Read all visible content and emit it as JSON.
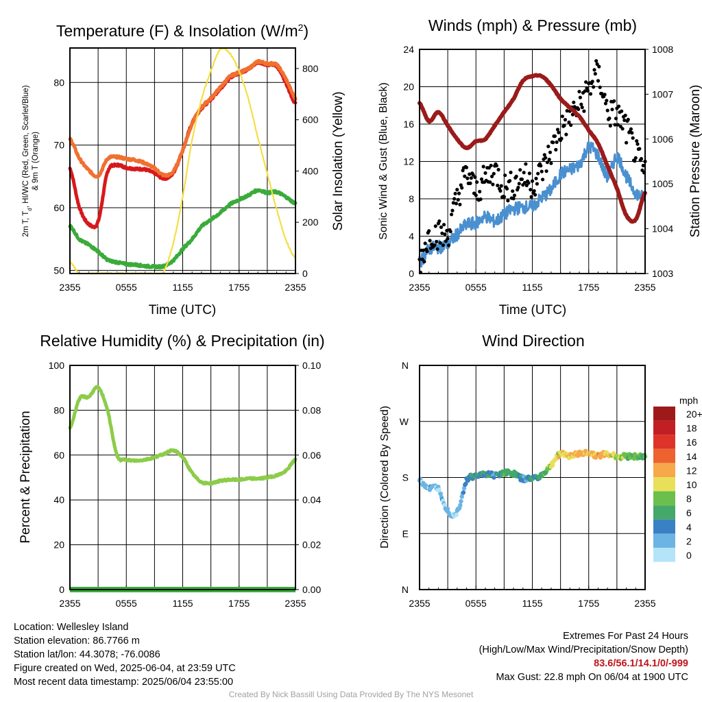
{
  "chart_data": [
    {
      "type": "line",
      "title": "Temperature (F) & Insolation (W/m²)",
      "xlabel": "Time (UTC)",
      "ylabel": "2m T, Td, HI/WC (Red, Green, Scarlet/Blue) & 9m T (Orange)",
      "ylabel_line1": "2m T, T",
      "ylabel_sub": "d",
      "ylabel_line1_tail": ", HI/WC (Red, Green, Scarlet/Blue)",
      "ylabel_line2": "& 9m T (Orange)",
      "y2label": "Solar Insolation (Yellow)",
      "x_ticks": [
        "2355",
        "0555",
        "1155",
        "1755",
        "2355"
      ],
      "ylim": [
        49.5,
        85.5
      ],
      "y_ticks": [
        50,
        60,
        70,
        80
      ],
      "y2lim": [
        0,
        880
      ],
      "y2_ticks": [
        0,
        200,
        400,
        600,
        800
      ],
      "x": [
        0,
        1,
        2,
        3,
        4,
        5,
        6,
        7,
        8,
        9,
        10,
        11,
        12,
        13,
        14,
        15,
        16,
        17,
        18,
        19,
        20,
        21,
        22,
        23,
        24
      ],
      "series": [
        {
          "color": "#d7191c",
          "values": [
            66.3,
            60.1,
            57.4,
            57.8,
            65.7,
            66.8,
            66.4,
            66.2,
            66.1,
            65.5,
            64.7,
            65.6,
            69.2,
            73.5,
            75.8,
            77.3,
            79.0,
            80.7,
            81.5,
            82.1,
            83.2,
            82.8,
            82.6,
            79.9,
            76.6
          ]
        },
        {
          "color": "#f07030",
          "values": [
            71.0,
            67.9,
            66.0,
            65.1,
            67.8,
            68.1,
            67.8,
            67.6,
            67.1,
            66.3,
            65.2,
            65.8,
            69.2,
            73.4,
            76.0,
            77.5,
            79.2,
            80.9,
            81.6,
            82.2,
            83.3,
            83.0,
            82.8,
            80.5,
            77.5
          ]
        },
        {
          "color": "#3aab3a",
          "values": [
            57.1,
            55.0,
            54.1,
            53.0,
            51.7,
            51.3,
            51.0,
            50.9,
            50.7,
            50.6,
            50.7,
            51.6,
            53.4,
            55.0,
            57.0,
            58.1,
            59.2,
            60.5,
            61.3,
            62.0,
            62.8,
            62.4,
            62.5,
            61.7,
            60.7
          ]
        },
        {
          "color": "#f5de44",
          "axis": "y2",
          "values": [
            45,
            0,
            0,
            0,
            0,
            0,
            0,
            0,
            0,
            0,
            10,
            120,
            300,
            520,
            680,
            790,
            875,
            860,
            790,
            680,
            530,
            390,
            250,
            130,
            60
          ]
        }
      ]
    },
    {
      "type": "line",
      "title": "Winds (mph) & Pressure (mb)",
      "xlabel": "Time (UTC)",
      "ylabel": "Sonic Wind & Gust (Blue, Black)",
      "y2label": "Station Pressure (Maroon)",
      "x_ticks": [
        "2355",
        "0555",
        "1155",
        "1755",
        "2355"
      ],
      "ylim": [
        0,
        24
      ],
      "y_ticks": [
        0,
        4,
        8,
        12,
        16,
        20,
        24
      ],
      "y2lim": [
        1003,
        1008
      ],
      "y2_ticks": [
        1003,
        1004,
        1005,
        1006,
        1007,
        1008
      ],
      "x": [
        0,
        1,
        2,
        3,
        4,
        5,
        6,
        7,
        8,
        9,
        10,
        11,
        12,
        13,
        14,
        15,
        16,
        17,
        18,
        19,
        20,
        21,
        22,
        23,
        24
      ],
      "series": [
        {
          "color": "#4a90d0",
          "values": [
            1.2,
            2.6,
            2.8,
            3.2,
            4.2,
            5.2,
            5.4,
            6.1,
            5.6,
            6.3,
            6.9,
            7.1,
            7.2,
            8.1,
            9.0,
            10.6,
            11.1,
            11.7,
            13.5,
            12.6,
            10.4,
            12.5,
            10.4,
            8.7,
            8.1
          ]
        },
        {
          "color": "#000000",
          "marker": "dot",
          "values": [
            1.3,
            4.0,
            4.2,
            4.3,
            8.0,
            10.5,
            9.0,
            10.1,
            11.0,
            9.3,
            9.5,
            10.4,
            9.7,
            11.0,
            13.1,
            15.3,
            16.8,
            18.0,
            19.8,
            21.2,
            17.5,
            17.0,
            15.4,
            12.9,
            10.5
          ]
        },
        {
          "color": "#9b1b1b",
          "axis": "y2",
          "values": [
            1006.8,
            1006.4,
            1006.6,
            1006.3,
            1006.0,
            1005.8,
            1005.95,
            1006.0,
            1006.3,
            1006.6,
            1006.9,
            1007.3,
            1007.4,
            1007.4,
            1007.2,
            1006.9,
            1006.7,
            1006.5,
            1006.2,
            1005.9,
            1005.4,
            1004.9,
            1004.3,
            1004.2,
            1004.8
          ]
        }
      ]
    },
    {
      "type": "line",
      "title": "Relative Humidity (%) & Precipitation (in)",
      "ylabel": "Percent & Precipitation",
      "x_ticks": [
        "2355",
        "0555",
        "1155",
        "1755",
        "2355"
      ],
      "ylim": [
        0,
        100
      ],
      "y_ticks": [
        0,
        20,
        40,
        60,
        80,
        100
      ],
      "y2lim": [
        0,
        0.1
      ],
      "y2_ticks": [
        "0.00",
        "0.02",
        "0.04",
        "0.06",
        "0.08",
        "0.10"
      ],
      "x": [
        0,
        1,
        2,
        3,
        4,
        5,
        6,
        7,
        8,
        9,
        10,
        11,
        12,
        13,
        14,
        15,
        16,
        17,
        18,
        19,
        20,
        21,
        22,
        23,
        24
      ],
      "series": [
        {
          "color": "#8ccc4a",
          "values": [
            72.0,
            85.0,
            86.0,
            90.0,
            80.0,
            60.0,
            58.0,
            57.5,
            58.0,
            59.0,
            60.5,
            62.0,
            59.0,
            52.0,
            48.0,
            47.5,
            48.5,
            49.0,
            49.0,
            49.5,
            49.5,
            50.0,
            51.0,
            53.0,
            58.0
          ]
        },
        {
          "color": "#3aab3a",
          "axis": "y2",
          "values": [
            0,
            0,
            0,
            0,
            0,
            0,
            0,
            0,
            0,
            0,
            0,
            0,
            0,
            0,
            0,
            0,
            0,
            0,
            0,
            0,
            0,
            0,
            0,
            0,
            0
          ]
        }
      ]
    },
    {
      "type": "scatter",
      "title": "Wind Direction",
      "ylabel": "Direction (Colored By Speed)",
      "x_ticks": [
        "2355",
        "0555",
        "1155",
        "1755",
        "2355"
      ],
      "y_ticks": [
        "N",
        "E",
        "S",
        "W",
        "N"
      ],
      "ylim": [
        0,
        360
      ],
      "x": [
        0,
        1,
        2,
        3,
        4,
        5,
        6,
        7,
        8,
        9,
        10,
        11,
        12,
        13,
        14,
        15,
        16,
        17,
        18,
        19,
        20,
        21,
        22,
        23,
        24
      ],
      "direction_deg": [
        175,
        163,
        162,
        127,
        125,
        175,
        182,
        186,
        184,
        188,
        186,
        178,
        179,
        184,
        200,
        218,
        215,
        218,
        220,
        215,
        218,
        214,
        214,
        214,
        213
      ],
      "speed_mph": [
        2,
        2,
        2,
        2,
        1,
        4,
        5,
        5,
        4,
        6,
        6,
        4,
        5,
        6,
        9,
        10,
        11,
        12,
        11,
        12,
        11,
        9,
        8,
        7,
        7
      ],
      "colorbar_title": "mph",
      "colorbar_labels": [
        "20+",
        "18",
        "16",
        "14",
        "12",
        "10",
        "8",
        "6",
        "4",
        "2",
        "0"
      ],
      "colorbar_colors": [
        "#9e1a1a",
        "#c21f24",
        "#dd3328",
        "#ee6230",
        "#f6a84a",
        "#e8e05a",
        "#6cbf4c",
        "#44a868",
        "#3a80c4",
        "#6cb4e4",
        "#b4e4f8"
      ]
    }
  ],
  "info": {
    "location": "Location: Wellesley Island",
    "elevation": "Station elevation: 86.7766 m",
    "latlon": "Station lat/lon: 44.3078; -76.0086",
    "created": "Figure created on Wed, 2025-06-04, at 23:59 UTC",
    "recent": "Most recent data timestamp: 2025/06/04 23:55:00",
    "extremes_title": "Extremes For Past 24 Hours",
    "extremes_sub": "(High/Low/Max Wind/Precipitation/Snow Depth)",
    "extremes_values": "83.6/56.1/14.1/0/-999",
    "max_gust": "Max Gust: 22.8 mph On 06/04 at 1900 UTC",
    "credit": "Created By Nick Bassill Using Data Provided By The NYS Mesonet"
  }
}
